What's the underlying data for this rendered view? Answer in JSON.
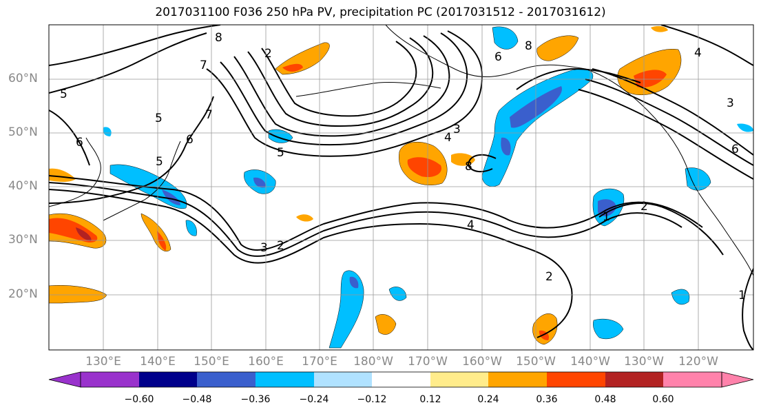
{
  "title": "2017031100 F036 250 hPa PV, precipitation PC (2017031512 - 2017031612)",
  "lat_labels": [
    "60°N",
    "50°N",
    "40°N",
    "30°N",
    "20°N"
  ],
  "lon_labels": [
    "130°E",
    "140°E",
    "150°E",
    "160°E",
    "170°E",
    "180°W",
    "170°W",
    "160°W",
    "150°W",
    "140°W",
    "130°W",
    "120°W"
  ],
  "colorbar": {
    "colors": [
      "#9932cc",
      "#00008b",
      "#3a5fcd",
      "#00bfff",
      "#b0e2ff",
      "#ffffff",
      "#ffec8b",
      "#ffa500",
      "#ff4500",
      "#b22222",
      "#ff82ab"
    ],
    "tick_labels": [
      "−0.60",
      "−0.48",
      "−0.36",
      "−0.24",
      "−0.12",
      "0.12",
      "0.24",
      "0.36",
      "0.48",
      "0.60"
    ]
  },
  "contour_labels": [
    "8",
    "7",
    "2",
    "7",
    "6",
    "5",
    "5",
    "6",
    "5",
    "4",
    "3",
    "8",
    "6",
    "8",
    "4",
    "2",
    "3",
    "2",
    "1",
    "2",
    "4",
    "3",
    "6",
    "1",
    "5"
  ]
}
